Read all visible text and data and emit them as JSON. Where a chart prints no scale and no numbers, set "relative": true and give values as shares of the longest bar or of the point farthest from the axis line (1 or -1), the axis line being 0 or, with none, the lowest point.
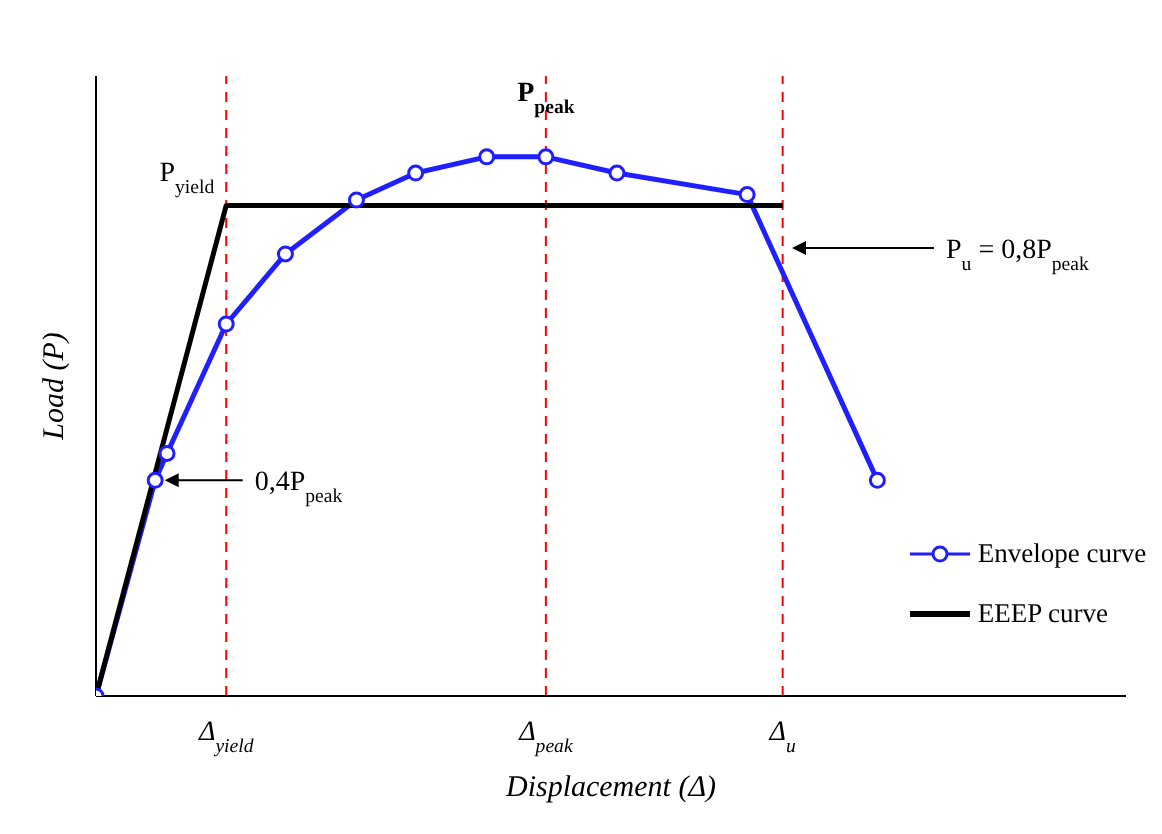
{
  "chart_data": {
    "type": "line",
    "relative": true,
    "xlabel": "Displacement (Δ)",
    "ylabel": "Load (P)",
    "categories": [
      null,
      null,
      null,
      null,
      null,
      null,
      null,
      null,
      null,
      null,
      null,
      "Δ$_{yield}$",
      null,
      null,
      null,
      null,
      null,
      null,
      null,
      null,
      null,
      null,
      null,
      null,
      null,
      null,
      null,
      null,
      null,
      null,
      null,
      null,
      null,
      null,
      null,
      null,
      null,
      null,
      "Δ$_{peak}$",
      null,
      null,
      null,
      null,
      null,
      null,
      null,
      null,
      null,
      null,
      null,
      null,
      null,
      null,
      null,
      null,
      null,
      null,
      null,
      "Δ$_{u}$",
      null,
      null,
      null,
      null,
      null,
      null,
      null,
      null,
      null,
      null,
      null,
      null,
      null,
      null,
      null,
      null,
      null,
      null,
      null,
      null,
      null,
      null,
      null,
      null,
      null,
      null,
      null,
      null,
      null
    ],
    "series": [
      {
        "name": "Envelope curve",
        "color": "#1f1fff",
        "marker": "circle",
        "values": [
          0,
          null,
          null,
          null,
          null,
          0.4,
          0.45,
          null,
          null,
          null,
          null,
          0.69,
          null,
          null,
          null,
          null,
          0.82,
          null,
          null,
          null,
          null,
          null,
          0.92,
          null,
          null,
          null,
          null,
          0.97,
          null,
          null,
          null,
          null,
          null,
          1.0,
          null,
          null,
          null,
          null,
          1.0,
          null,
          null,
          null,
          null,
          null,
          0.97,
          null,
          null,
          null,
          null,
          null,
          null,
          null,
          null,
          null,
          null,
          0.93,
          null,
          null,
          null,
          null,
          null,
          null,
          null,
          null,
          null,
          null,
          0.4,
          null,
          null,
          null,
          null,
          null,
          null,
          null,
          null,
          null,
          null,
          null,
          null,
          null,
          null,
          null,
          null,
          null,
          null,
          null,
          null,
          null
        ]
      },
      {
        "name": "EEEP curve",
        "color": "#000000",
        "marker": "none",
        "values": [
          0,
          null,
          null,
          null,
          null,
          null,
          null,
          null,
          null,
          null,
          null,
          0.91,
          null,
          null,
          null,
          null,
          null,
          null,
          null,
          null,
          null,
          null,
          null,
          null,
          null,
          null,
          null,
          null,
          null,
          null,
          null,
          null,
          null,
          null,
          null,
          null,
          null,
          null,
          null,
          null,
          null,
          null,
          null,
          null,
          null,
          null,
          null,
          null,
          null,
          null,
          null,
          null,
          null,
          null,
          null,
          null,
          null,
          null,
          0.91,
          null,
          null,
          null,
          null,
          null,
          null,
          null,
          null,
          null,
          null,
          null,
          null,
          null,
          null,
          null,
          null,
          null,
          null,
          null,
          null,
          null,
          null,
          null,
          null,
          null,
          null,
          null,
          null,
          null
        ]
      }
    ],
    "ref_lines": [
      {
        "axis": "x",
        "value": "Δ$_{yield}$",
        "color": "#ff0000",
        "line_style": "dashed"
      },
      {
        "axis": "x",
        "value": "Δ$_{peak}$",
        "color": "#ff0000",
        "line_style": "dashed"
      },
      {
        "axis": "x",
        "value": "Δ$_{u}$",
        "color": "#ff0000",
        "line_style": "dashed"
      }
    ],
    "annotations": [
      {
        "text": "P$_{yield}$",
        "x": "Δ$_{yield}$",
        "y": 0.91
      },
      {
        "text": "P$_{peak}$",
        "x": "Δ$_{peak}$",
        "y": 1.0
      },
      "0,4P$_{peak}$",
      "P$_{u}$ = 0,8P$_{peak}$"
    ],
    "grid": false,
    "legend": "bottom right"
  }
}
